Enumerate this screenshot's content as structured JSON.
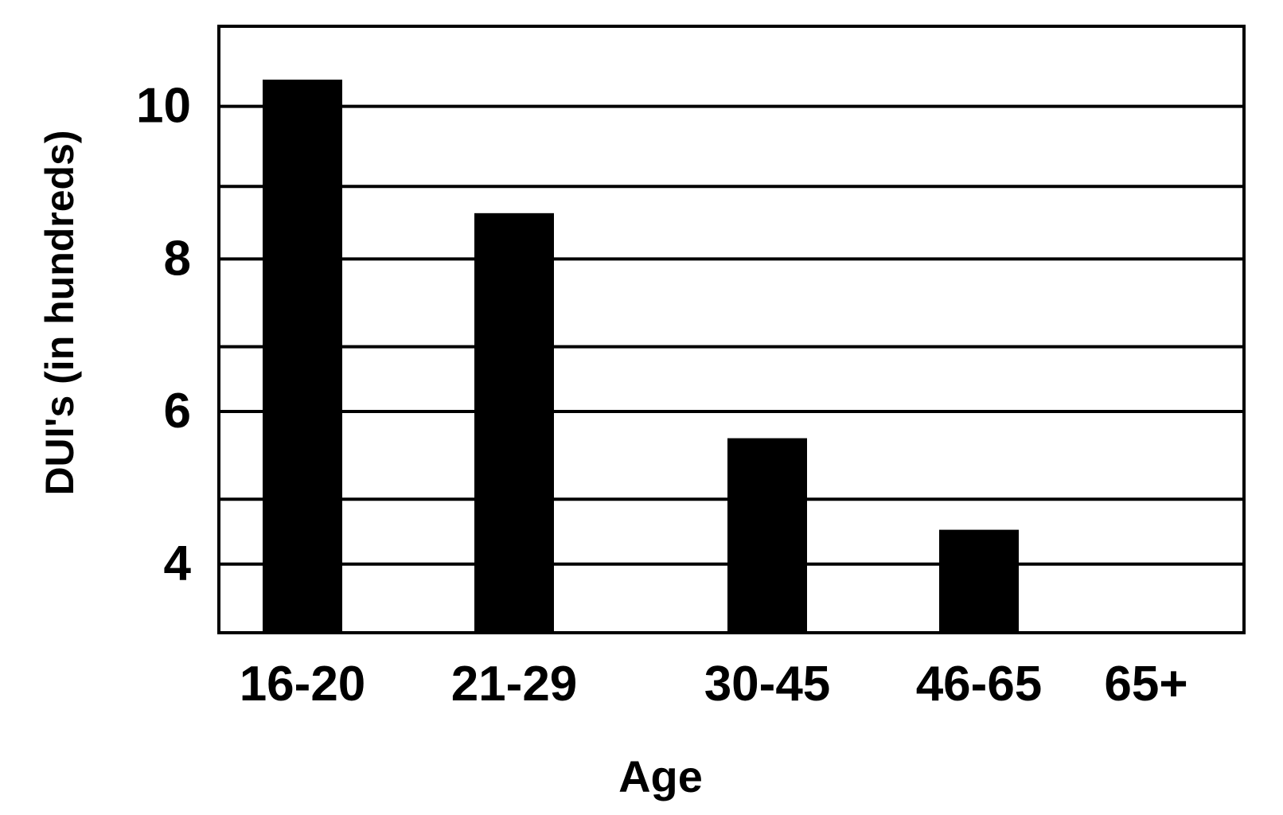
{
  "chart_data": {
    "type": "bar",
    "title": "",
    "xlabel": "Age",
    "ylabel": "DUI's (in hundreds)",
    "categories": [
      "16-20",
      "21-29",
      "30-45",
      "46-65",
      "65+"
    ],
    "values": [
      10.35,
      8.6,
      5.65,
      4.45,
      3.1
    ],
    "ylim": [
      3.1,
      11.05
    ],
    "yticks": [
      4,
      6,
      8,
      10
    ],
    "gridlines": [
      4,
      4.85,
      6,
      6.85,
      8,
      8.95,
      10
    ],
    "grid": true,
    "legend": "none",
    "colors": {
      "bar": "#000000",
      "grid": "#000000",
      "background": "#ffffff"
    }
  }
}
